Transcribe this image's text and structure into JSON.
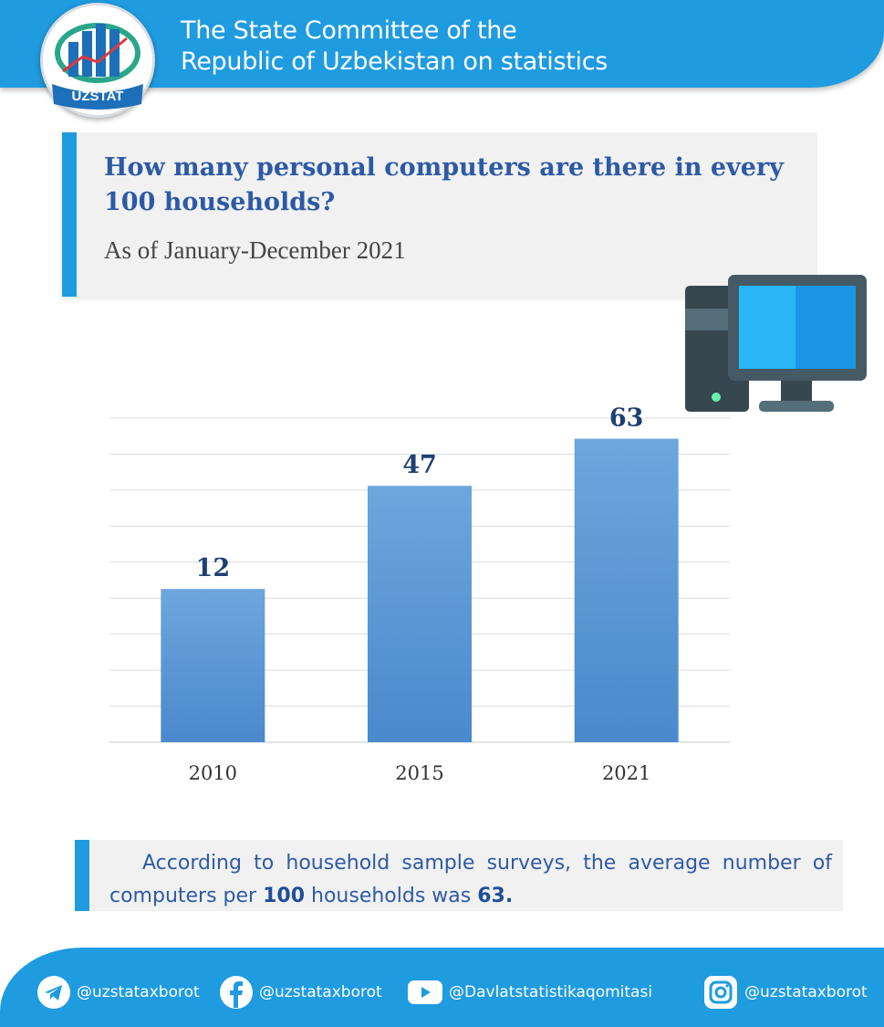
{
  "header": {
    "title_line1": "The State Committee of the",
    "title_line2": "Republic of Uzbekistan on statistics",
    "logo_text": "UZSTAT"
  },
  "title": {
    "question": "How many personal computers are there in every 100 households?",
    "period": "As of January-December 2021"
  },
  "chart_data": {
    "type": "bar",
    "title": "How many personal computers are there in every 100 households?",
    "categories": [
      "2010",
      "2015",
      "2021"
    ],
    "values": [
      12,
      47,
      63
    ],
    "xlabel": "",
    "ylabel": "",
    "ylim": [
      -40,
      70
    ],
    "grid": true,
    "legend": "none",
    "bar_color": "#5b9bd5"
  },
  "note": {
    "part1": "According to household sample surveys, the average number of computers per ",
    "num1": "100",
    "part2": " households was ",
    "num2": "63."
  },
  "footer": {
    "telegram": "@uzstataxborot",
    "facebook": "@uzstataxborot",
    "youtube": "@Davlatstatistikaqomitasi",
    "instagram": "@uzstataxborot"
  }
}
